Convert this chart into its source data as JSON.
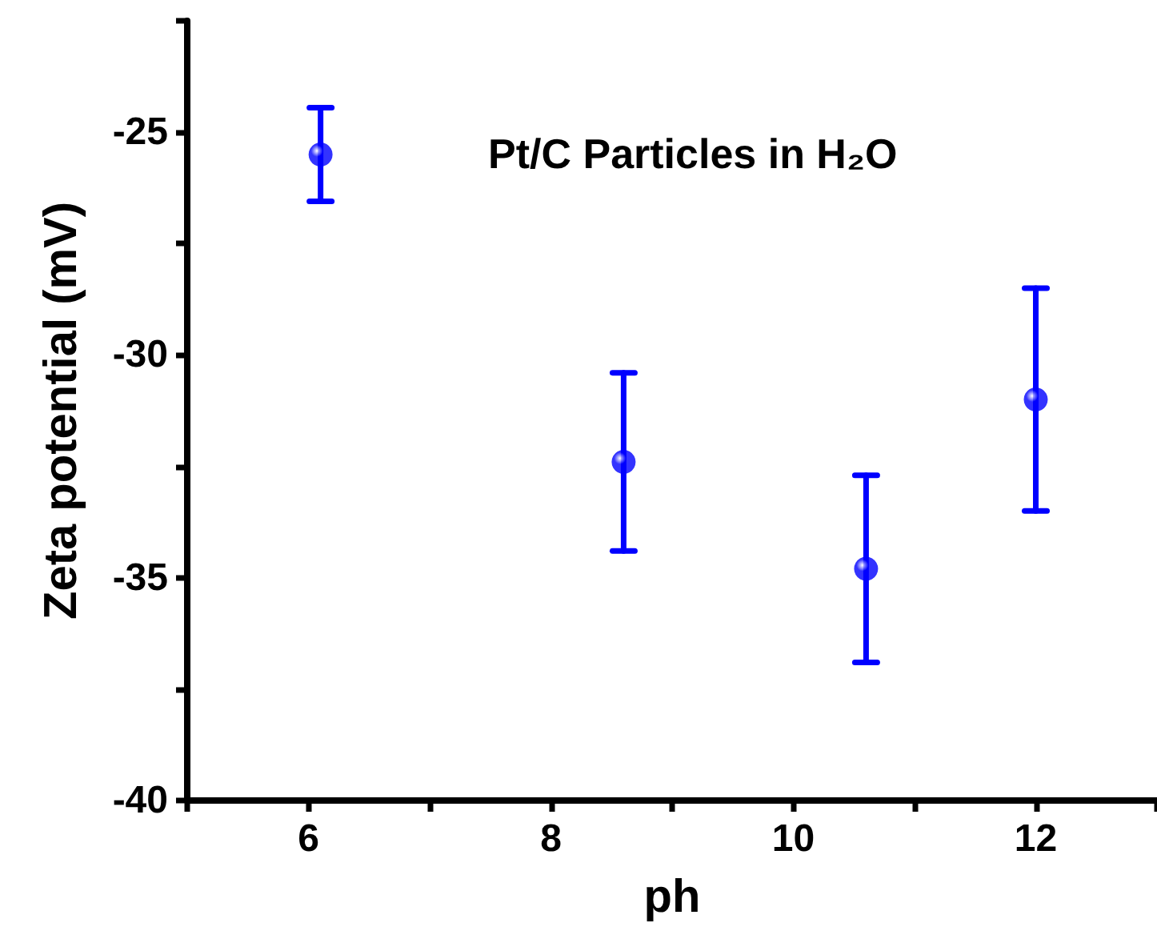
{
  "chart_data": {
    "type": "scatter",
    "xlabel": "ph",
    "ylabel": "Zeta potential (mV)",
    "annotations": [
      "Pt/C Particles in H₂O"
    ],
    "x": [
      6.1,
      8.6,
      10.6,
      12.0
    ],
    "series": [
      {
        "color": "#0000ff",
        "values": [
          -25.5,
          -32.4,
          -34.8,
          -31.0
        ],
        "errors": [
          1.05,
          2.0,
          2.1,
          2.5
        ]
      }
    ],
    "xlim": [
      5,
      13
    ],
    "xticks": [
      {
        "value": 5,
        "label": null
      },
      6,
      {
        "value": 7,
        "label": null
      },
      8,
      {
        "value": 9,
        "label": null
      },
      10,
      {
        "value": 11,
        "label": null
      },
      12,
      {
        "value": 13,
        "label": null
      }
    ],
    "ylim": [
      -40,
      -22.5
    ],
    "yticks": [
      -40,
      {
        "value": -37.5,
        "label": null
      },
      -35,
      {
        "value": -32.5,
        "label": null
      },
      -30,
      {
        "value": -27.5,
        "label": null
      },
      -25,
      {
        "value": -22.5,
        "label": null
      }
    ],
    "marker": "circle",
    "grid": false
  }
}
